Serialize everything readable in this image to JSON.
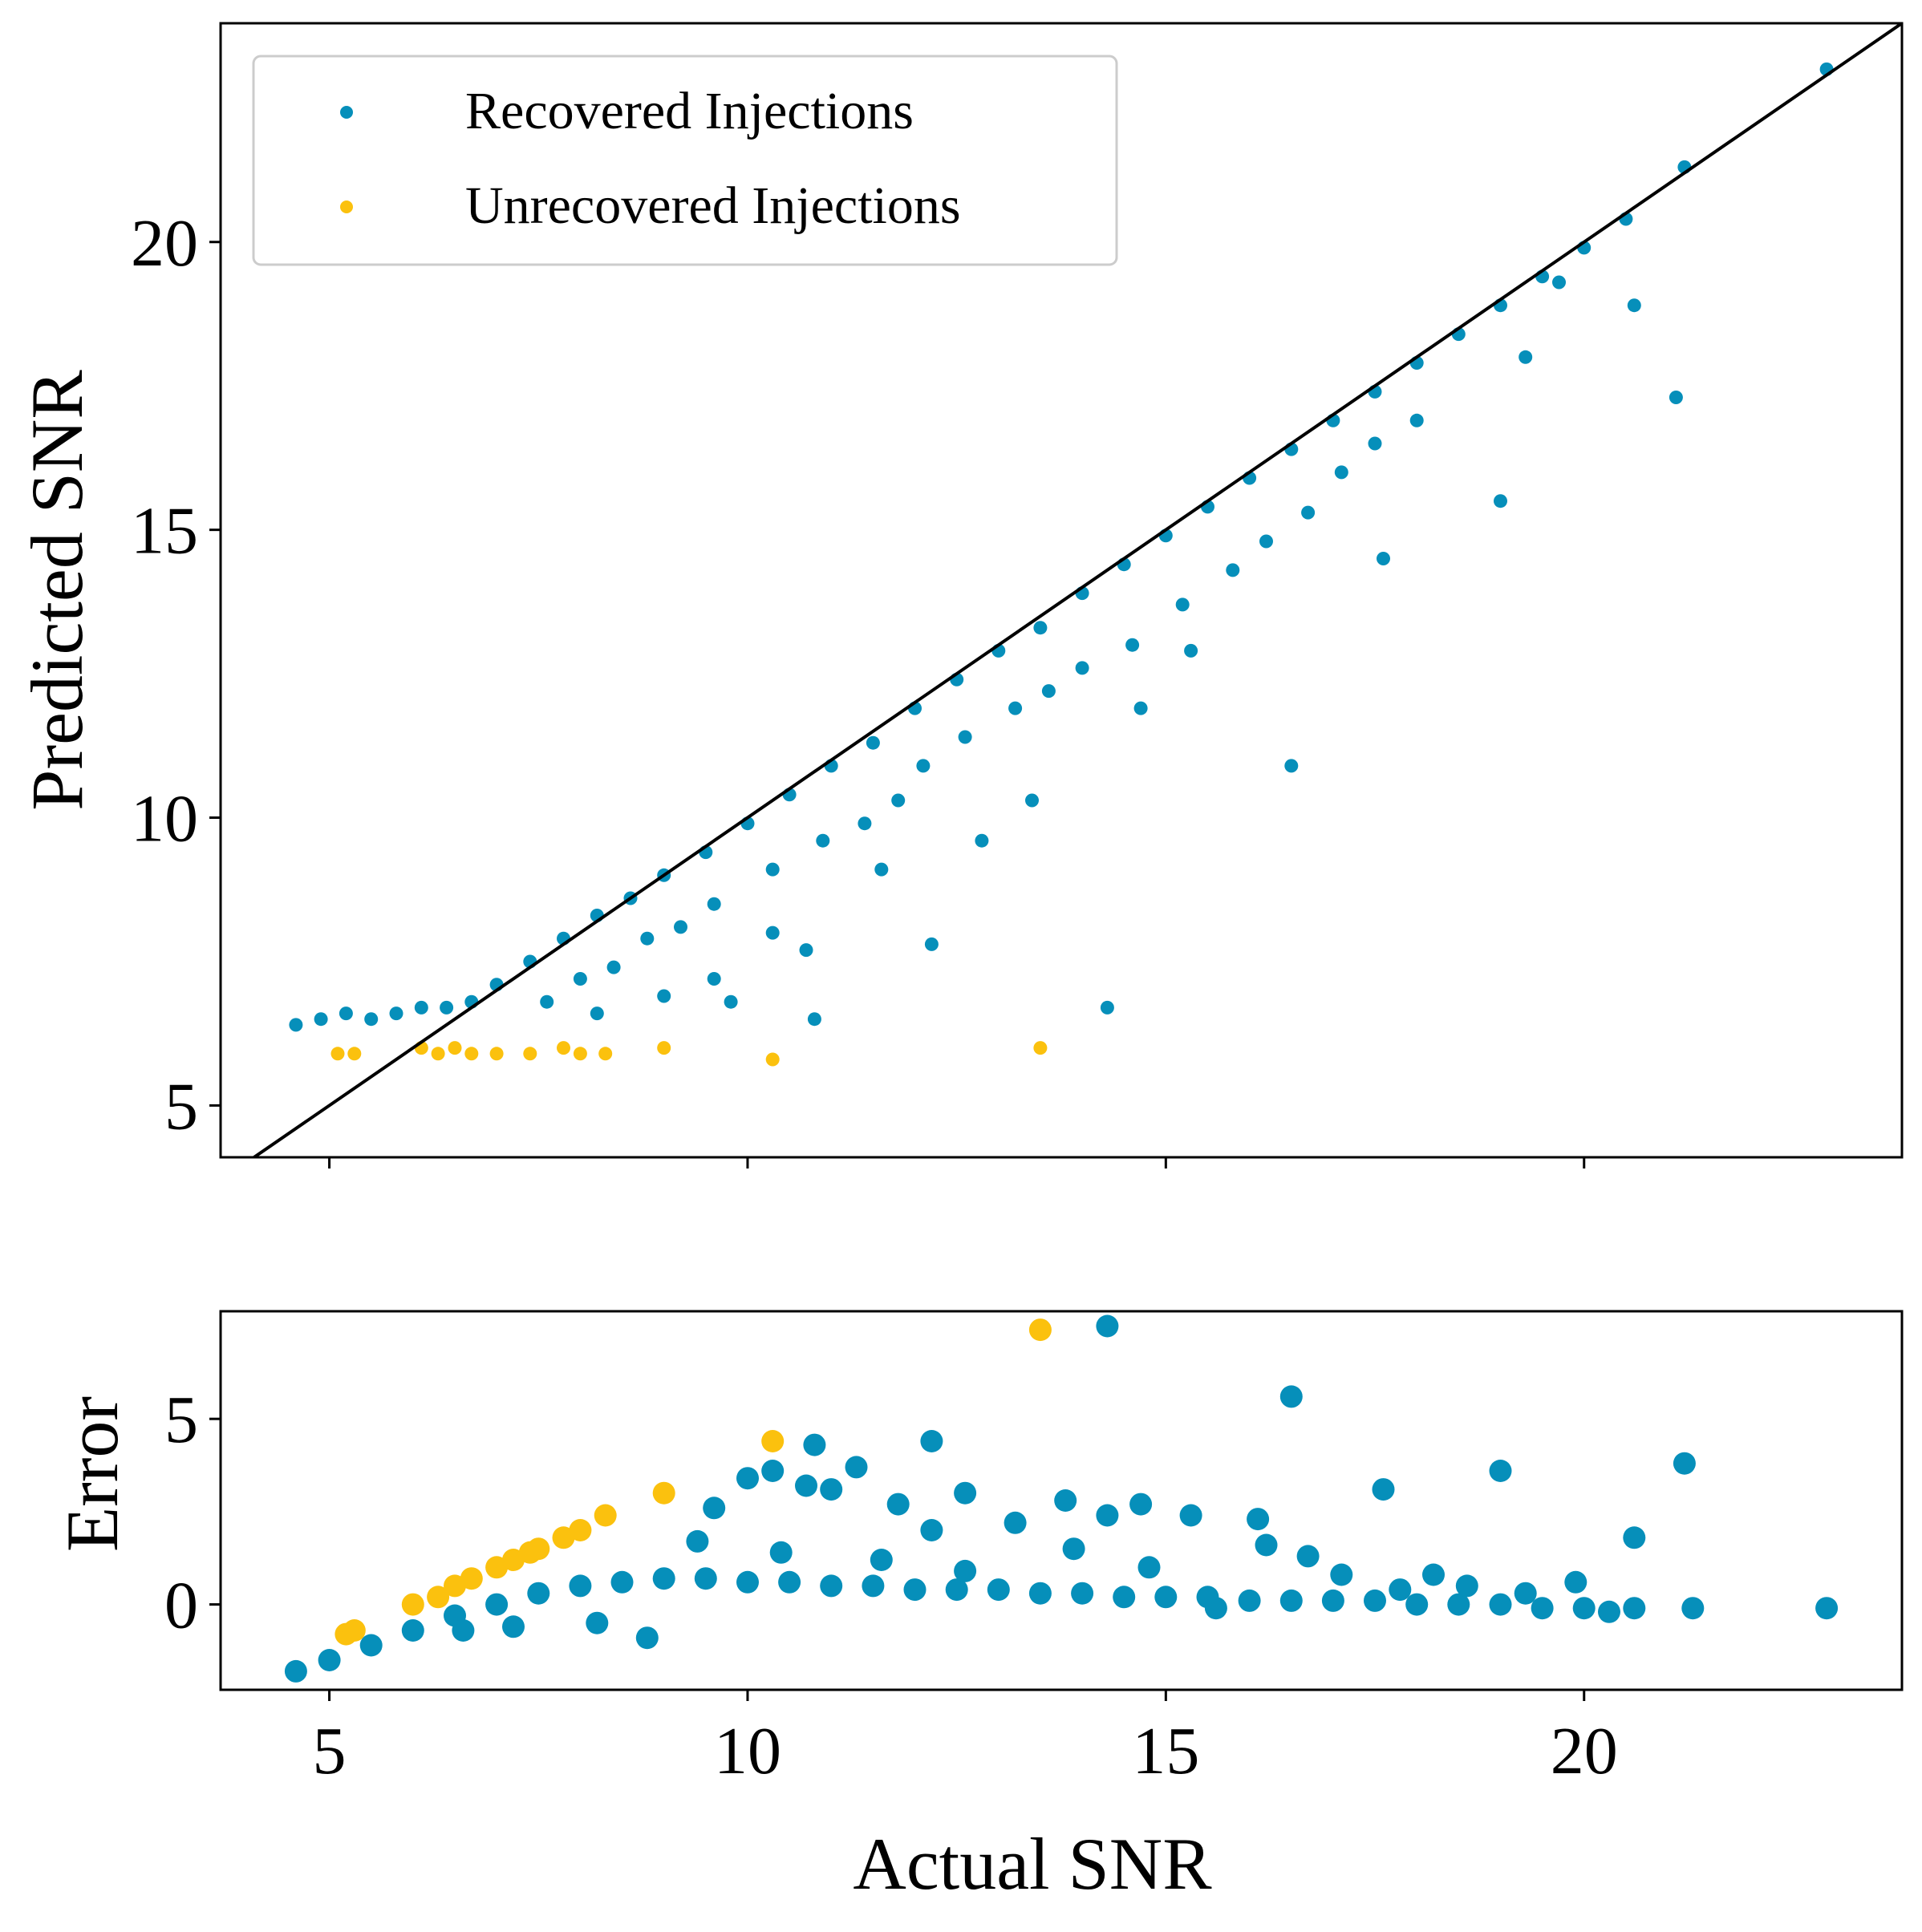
{
  "colors": {
    "recovered": "#068FBA",
    "unrecovered": "#FBC10E",
    "line": "#000000",
    "legend_border": "#CCCCCC"
  },
  "chart_data": [
    {
      "type": "scatter",
      "panel": "main",
      "title": "",
      "xlabel": "",
      "ylabel": "Predicted SNR",
      "xlim": [
        3.7,
        23.8
      ],
      "ylim": [
        4.1,
        23.8
      ],
      "xticks": [
        5,
        10,
        15,
        20
      ],
      "yticks": [
        5,
        10,
        15,
        20
      ],
      "x_tick_labels_visible": false,
      "legend": {
        "placement": "top-left",
        "entries": [
          "Recovered Injections",
          "Unrecovered Injections"
        ]
      },
      "reference_line": {
        "label": "y = x",
        "from": [
          3.7,
          3.7
        ],
        "to": [
          23.8,
          23.8
        ]
      },
      "series": [
        {
          "name": "Recovered Injections",
          "color": "recovered",
          "trend": "points cluster near y = x with a floor near 6.4 for actual SNR below ~7 and a downward-spreading tail",
          "points": [
            [
              4.6,
              6.4
            ],
            [
              4.9,
              6.5
            ],
            [
              5.2,
              6.6
            ],
            [
              5.5,
              6.5
            ],
            [
              5.8,
              6.6
            ],
            [
              6.1,
              6.7
            ],
            [
              6.4,
              6.7
            ],
            [
              6.7,
              6.8
            ],
            [
              7.0,
              7.1
            ],
            [
              7.4,
              7.5
            ],
            [
              7.8,
              7.9
            ],
            [
              8.2,
              8.3
            ],
            [
              8.6,
              8.6
            ],
            [
              9.0,
              9.0
            ],
            [
              9.5,
              9.4
            ],
            [
              10.0,
              9.9
            ],
            [
              10.5,
              10.4
            ],
            [
              11.0,
              10.9
            ],
            [
              11.5,
              11.3
            ],
            [
              12.0,
              11.9
            ],
            [
              12.5,
              12.4
            ],
            [
              13.0,
              12.9
            ],
            [
              13.5,
              13.3
            ],
            [
              14.0,
              13.9
            ],
            [
              14.5,
              14.4
            ],
            [
              15.0,
              14.9
            ],
            [
              15.5,
              15.4
            ],
            [
              16.0,
              15.9
            ],
            [
              16.5,
              16.4
            ],
            [
              17.0,
              16.9
            ],
            [
              17.5,
              17.4
            ],
            [
              18.0,
              17.9
            ],
            [
              18.5,
              18.4
            ],
            [
              19.0,
              18.9
            ],
            [
              19.5,
              19.4
            ],
            [
              20.0,
              19.9
            ],
            [
              20.5,
              20.4
            ],
            [
              21.2,
              21.3
            ],
            [
              22.9,
              23.0
            ],
            [
              8.0,
              7.2
            ],
            [
              8.8,
              7.9
            ],
            [
              9.2,
              8.1
            ],
            [
              9.6,
              8.5
            ],
            [
              10.3,
              9.1
            ],
            [
              10.9,
              9.6
            ],
            [
              11.4,
              9.9
            ],
            [
              11.8,
              10.3
            ],
            [
              12.1,
              10.9
            ],
            [
              12.6,
              11.4
            ],
            [
              13.2,
              11.9
            ],
            [
              13.6,
              12.2
            ],
            [
              14.0,
              12.6
            ],
            [
              14.6,
              13.0
            ],
            [
              15.2,
              13.7
            ],
            [
              15.8,
              14.3
            ],
            [
              16.2,
              14.8
            ],
            [
              16.7,
              15.3
            ],
            [
              17.1,
              16.0
            ],
            [
              17.5,
              16.5
            ],
            [
              18.0,
              16.9
            ],
            [
              8.2,
              6.6
            ],
            [
              9.0,
              6.9
            ],
            [
              9.8,
              6.8
            ],
            [
              10.7,
              7.7
            ],
            [
              11.6,
              9.1
            ],
            [
              12.2,
              7.8
            ],
            [
              12.8,
              9.6
            ],
            [
              13.4,
              10.3
            ],
            [
              14.3,
              6.7
            ],
            [
              14.7,
              11.9
            ],
            [
              15.3,
              12.9
            ],
            [
              16.5,
              10.9
            ],
            [
              17.6,
              14.5
            ],
            [
              19.0,
              15.5
            ],
            [
              19.3,
              18.0
            ],
            [
              19.7,
              19.3
            ],
            [
              20.6,
              18.9
            ],
            [
              21.1,
              17.3
            ],
            [
              10.8,
              6.5
            ],
            [
              9.6,
              7.2
            ],
            [
              10.3,
              8.0
            ],
            [
              7.6,
              6.8
            ],
            [
              8.4,
              7.4
            ]
          ]
        },
        {
          "name": "Unrecovered Injections",
          "color": "unrecovered",
          "points": [
            [
              5.1,
              5.9
            ],
            [
              5.3,
              5.9
            ],
            [
              6.1,
              6.0
            ],
            [
              6.3,
              5.9
            ],
            [
              6.5,
              6.0
            ],
            [
              6.7,
              5.9
            ],
            [
              7.0,
              5.9
            ],
            [
              7.4,
              5.9
            ],
            [
              7.8,
              6.0
            ],
            [
              8.0,
              5.9
            ],
            [
              8.3,
              5.9
            ],
            [
              9.0,
              6.0
            ],
            [
              10.3,
              5.8
            ],
            [
              13.5,
              6.0
            ]
          ]
        }
      ]
    },
    {
      "type": "scatter",
      "panel": "residual",
      "title": "",
      "xlabel": "Actual SNR",
      "ylabel": "Error",
      "xlim": [
        3.7,
        23.8
      ],
      "ylim": [
        -2.3,
        7.9
      ],
      "xticks": [
        5,
        10,
        15,
        20
      ],
      "yticks": [
        0,
        5
      ],
      "series": [
        {
          "name": "Recovered Injections",
          "color": "recovered",
          "trend": "error rises from about -1.8 at SNR 4.6 to about +0.7 near SNR 9 then stays near 0 with outliers",
          "points": [
            [
              4.6,
              -1.8
            ],
            [
              5.0,
              -1.5
            ],
            [
              5.5,
              -1.1
            ],
            [
              6.0,
              -0.7
            ],
            [
              6.5,
              -0.3
            ],
            [
              7.0,
              0.0
            ],
            [
              7.5,
              0.3
            ],
            [
              8.0,
              0.5
            ],
            [
              8.5,
              0.6
            ],
            [
              9.0,
              0.7
            ],
            [
              9.5,
              0.7
            ],
            [
              10.0,
              0.6
            ],
            [
              10.5,
              0.6
            ],
            [
              11.0,
              0.5
            ],
            [
              11.5,
              0.5
            ],
            [
              12.0,
              0.4
            ],
            [
              12.5,
              0.4
            ],
            [
              13.0,
              0.4
            ],
            [
              13.5,
              0.3
            ],
            [
              14.0,
              0.3
            ],
            [
              14.5,
              0.2
            ],
            [
              15.0,
              0.2
            ],
            [
              15.5,
              0.2
            ],
            [
              16.0,
              0.1
            ],
            [
              16.5,
              0.1
            ],
            [
              17.0,
              0.1
            ],
            [
              17.5,
              0.1
            ],
            [
              18.0,
              0.0
            ],
            [
              18.5,
              0.0
            ],
            [
              19.0,
              0.0
            ],
            [
              19.5,
              -0.1
            ],
            [
              20.0,
              -0.1
            ],
            [
              20.3,
              -0.2
            ],
            [
              20.6,
              -0.1
            ],
            [
              21.3,
              -0.1
            ],
            [
              22.9,
              -0.1
            ],
            [
              14.3,
              7.5
            ],
            [
              16.5,
              5.6
            ],
            [
              10.8,
              4.3
            ],
            [
              12.2,
              4.4
            ],
            [
              10.3,
              3.6
            ],
            [
              10.0,
              3.4
            ],
            [
              11.3,
              3.7
            ],
            [
              21.2,
              3.8
            ],
            [
              19.0,
              3.6
            ],
            [
              17.6,
              3.1
            ],
            [
              12.6,
              3.0
            ],
            [
              13.8,
              2.8
            ],
            [
              14.7,
              2.7
            ],
            [
              15.3,
              2.4
            ],
            [
              16.1,
              2.3
            ],
            [
              20.6,
              1.8
            ],
            [
              19.9,
              0.6
            ],
            [
              17.8,
              0.4
            ],
            [
              18.2,
              0.8
            ],
            [
              9.6,
              2.6
            ],
            [
              11.8,
              2.7
            ],
            [
              13.2,
              2.2
            ],
            [
              10.7,
              3.2
            ],
            [
              11.0,
              3.1
            ],
            [
              14.3,
              2.4
            ],
            [
              16.7,
              1.3
            ],
            [
              12.2,
              2.0
            ],
            [
              8.8,
              -0.9
            ],
            [
              12.6,
              0.9
            ],
            [
              15.6,
              -0.1
            ],
            [
              13.9,
              1.5
            ],
            [
              9.4,
              1.7
            ],
            [
              10.4,
              1.4
            ],
            [
              11.6,
              1.2
            ],
            [
              14.8,
              1.0
            ],
            [
              16.2,
              1.6
            ],
            [
              17.1,
              0.8
            ],
            [
              18.6,
              0.5
            ],
            [
              19.3,
              0.3
            ],
            [
              8.2,
              -0.5
            ],
            [
              7.2,
              -0.6
            ],
            [
              6.6,
              -0.7
            ]
          ]
        },
        {
          "name": "Unrecovered Injections",
          "color": "unrecovered",
          "points": [
            [
              5.2,
              -0.8
            ],
            [
              5.3,
              -0.7
            ],
            [
              6.0,
              0.0
            ],
            [
              6.3,
              0.2
            ],
            [
              6.5,
              0.5
            ],
            [
              6.7,
              0.7
            ],
            [
              7.0,
              1.0
            ],
            [
              7.2,
              1.2
            ],
            [
              7.4,
              1.4
            ],
            [
              7.5,
              1.5
            ],
            [
              7.8,
              1.8
            ],
            [
              8.0,
              2.0
            ],
            [
              8.3,
              2.4
            ],
            [
              9.0,
              3.0
            ],
            [
              10.3,
              4.4
            ],
            [
              13.5,
              7.4
            ]
          ]
        }
      ]
    }
  ]
}
